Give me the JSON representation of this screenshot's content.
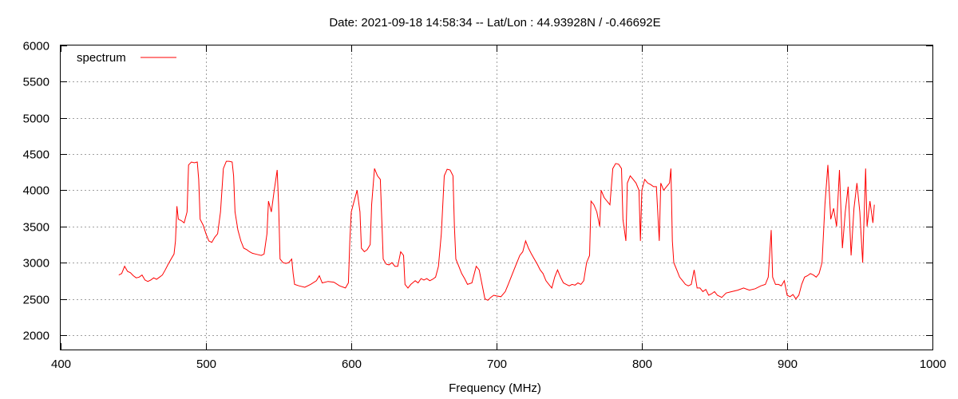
{
  "chart_data": {
    "type": "line",
    "title": "Date: 2021-09-18 14:58:34  --  Lat/Lon : 44.93928N / -0.46692E",
    "xlabel": "Frequency (MHz)",
    "ylabel": "",
    "xlim": [
      400,
      1000
    ],
    "ylim": [
      1800,
      6000
    ],
    "xticks": [
      400,
      500,
      600,
      700,
      800,
      900,
      1000
    ],
    "yticks": [
      2000,
      2500,
      3000,
      3500,
      4000,
      4500,
      5000,
      5500,
      6000
    ],
    "grid": true,
    "legend_position": "top-left",
    "colors": {
      "series": "#ff0000"
    },
    "series": [
      {
        "name": "spectrum",
        "points": [
          [
            440,
            2830
          ],
          [
            442,
            2850
          ],
          [
            444,
            2950
          ],
          [
            446,
            2880
          ],
          [
            448,
            2860
          ],
          [
            450,
            2820
          ],
          [
            452,
            2790
          ],
          [
            454,
            2800
          ],
          [
            456,
            2830
          ],
          [
            458,
            2760
          ],
          [
            460,
            2740
          ],
          [
            462,
            2760
          ],
          [
            464,
            2790
          ],
          [
            466,
            2770
          ],
          [
            468,
            2800
          ],
          [
            470,
            2830
          ],
          [
            472,
            2900
          ],
          [
            474,
            2980
          ],
          [
            476,
            3050
          ],
          [
            478,
            3120
          ],
          [
            479,
            3300
          ],
          [
            480,
            3780
          ],
          [
            481,
            3600
          ],
          [
            483,
            3580
          ],
          [
            485,
            3550
          ],
          [
            487,
            3700
          ],
          [
            488,
            4350
          ],
          [
            490,
            4390
          ],
          [
            492,
            4380
          ],
          [
            494,
            4390
          ],
          [
            495,
            4150
          ],
          [
            496,
            3600
          ],
          [
            498,
            3520
          ],
          [
            500,
            3400
          ],
          [
            502,
            3300
          ],
          [
            504,
            3280
          ],
          [
            506,
            3350
          ],
          [
            508,
            3400
          ],
          [
            510,
            3700
          ],
          [
            512,
            4300
          ],
          [
            514,
            4400
          ],
          [
            516,
            4400
          ],
          [
            518,
            4390
          ],
          [
            519,
            4200
          ],
          [
            520,
            3700
          ],
          [
            522,
            3450
          ],
          [
            524,
            3300
          ],
          [
            526,
            3200
          ],
          [
            528,
            3180
          ],
          [
            530,
            3150
          ],
          [
            532,
            3130
          ],
          [
            534,
            3120
          ],
          [
            536,
            3110
          ],
          [
            538,
            3100
          ],
          [
            540,
            3120
          ],
          [
            542,
            3400
          ],
          [
            543,
            3850
          ],
          [
            545,
            3700
          ],
          [
            547,
            4000
          ],
          [
            549,
            4280
          ],
          [
            550,
            3800
          ],
          [
            551,
            3050
          ],
          [
            553,
            3000
          ],
          [
            555,
            2990
          ],
          [
            557,
            3000
          ],
          [
            559,
            3050
          ],
          [
            560,
            2850
          ],
          [
            561,
            2700
          ],
          [
            564,
            2680
          ],
          [
            568,
            2660
          ],
          [
            572,
            2700
          ],
          [
            576,
            2750
          ],
          [
            578,
            2820
          ],
          [
            580,
            2720
          ],
          [
            584,
            2740
          ],
          [
            588,
            2730
          ],
          [
            592,
            2680
          ],
          [
            596,
            2650
          ],
          [
            598,
            2720
          ],
          [
            599,
            3300
          ],
          [
            600,
            3700
          ],
          [
            602,
            3850
          ],
          [
            604,
            4000
          ],
          [
            606,
            3700
          ],
          [
            607,
            3200
          ],
          [
            609,
            3150
          ],
          [
            611,
            3180
          ],
          [
            613,
            3250
          ],
          [
            614,
            3800
          ],
          [
            616,
            4300
          ],
          [
            618,
            4200
          ],
          [
            620,
            4150
          ],
          [
            621,
            3600
          ],
          [
            622,
            3050
          ],
          [
            624,
            2980
          ],
          [
            626,
            2970
          ],
          [
            628,
            3000
          ],
          [
            630,
            2950
          ],
          [
            632,
            2950
          ],
          [
            634,
            3150
          ],
          [
            636,
            3100
          ],
          [
            637,
            2700
          ],
          [
            639,
            2650
          ],
          [
            641,
            2700
          ],
          [
            644,
            2750
          ],
          [
            646,
            2720
          ],
          [
            648,
            2780
          ],
          [
            650,
            2760
          ],
          [
            652,
            2780
          ],
          [
            654,
            2750
          ],
          [
            656,
            2770
          ],
          [
            658,
            2800
          ],
          [
            660,
            2950
          ],
          [
            662,
            3400
          ],
          [
            664,
            4200
          ],
          [
            666,
            4290
          ],
          [
            668,
            4280
          ],
          [
            670,
            4200
          ],
          [
            671,
            3500
          ],
          [
            672,
            3050
          ],
          [
            674,
            2950
          ],
          [
            676,
            2850
          ],
          [
            678,
            2780
          ],
          [
            680,
            2700
          ],
          [
            683,
            2720
          ],
          [
            686,
            2950
          ],
          [
            688,
            2900
          ],
          [
            690,
            2700
          ],
          [
            692,
            2500
          ],
          [
            694,
            2480
          ],
          [
            696,
            2520
          ],
          [
            698,
            2550
          ],
          [
            700,
            2540
          ],
          [
            703,
            2530
          ],
          [
            706,
            2600
          ],
          [
            708,
            2700
          ],
          [
            710,
            2800
          ],
          [
            712,
            2900
          ],
          [
            714,
            3000
          ],
          [
            716,
            3100
          ],
          [
            718,
            3150
          ],
          [
            720,
            3300
          ],
          [
            722,
            3200
          ],
          [
            724,
            3120
          ],
          [
            726,
            3050
          ],
          [
            728,
            2980
          ],
          [
            730,
            2900
          ],
          [
            732,
            2850
          ],
          [
            734,
            2750
          ],
          [
            736,
            2700
          ],
          [
            738,
            2650
          ],
          [
            740,
            2800
          ],
          [
            742,
            2900
          ],
          [
            744,
            2800
          ],
          [
            746,
            2720
          ],
          [
            748,
            2700
          ],
          [
            750,
            2680
          ],
          [
            752,
            2700
          ],
          [
            754,
            2690
          ],
          [
            756,
            2720
          ],
          [
            758,
            2700
          ],
          [
            760,
            2750
          ],
          [
            762,
            3000
          ],
          [
            764,
            3100
          ],
          [
            765,
            3850
          ],
          [
            767,
            3800
          ],
          [
            769,
            3700
          ],
          [
            771,
            3500
          ],
          [
            772,
            4000
          ],
          [
            774,
            3900
          ],
          [
            776,
            3850
          ],
          [
            778,
            3800
          ],
          [
            780,
            4300
          ],
          [
            782,
            4370
          ],
          [
            784,
            4360
          ],
          [
            786,
            4300
          ],
          [
            787,
            3600
          ],
          [
            789,
            3300
          ],
          [
            790,
            4100
          ],
          [
            792,
            4200
          ],
          [
            794,
            4150
          ],
          [
            796,
            4100
          ],
          [
            798,
            4000
          ],
          [
            799,
            3300
          ],
          [
            800,
            4000
          ],
          [
            802,
            4150
          ],
          [
            804,
            4100
          ],
          [
            806,
            4080
          ],
          [
            808,
            4050
          ],
          [
            810,
            4050
          ],
          [
            812,
            3300
          ],
          [
            813,
            4100
          ],
          [
            815,
            4000
          ],
          [
            817,
            4050
          ],
          [
            819,
            4100
          ],
          [
            820,
            4300
          ],
          [
            821,
            3300
          ],
          [
            822,
            3000
          ],
          [
            824,
            2900
          ],
          [
            826,
            2800
          ],
          [
            828,
            2750
          ],
          [
            830,
            2700
          ],
          [
            832,
            2680
          ],
          [
            834,
            2700
          ],
          [
            836,
            2900
          ],
          [
            838,
            2650
          ],
          [
            840,
            2650
          ],
          [
            842,
            2600
          ],
          [
            844,
            2630
          ],
          [
            846,
            2550
          ],
          [
            848,
            2570
          ],
          [
            850,
            2600
          ],
          [
            852,
            2550
          ],
          [
            855,
            2520
          ],
          [
            858,
            2580
          ],
          [
            862,
            2600
          ],
          [
            866,
            2620
          ],
          [
            870,
            2650
          ],
          [
            874,
            2620
          ],
          [
            878,
            2640
          ],
          [
            882,
            2680
          ],
          [
            885,
            2700
          ],
          [
            887,
            2800
          ],
          [
            889,
            3450
          ],
          [
            890,
            2800
          ],
          [
            892,
            2700
          ],
          [
            894,
            2700
          ],
          [
            896,
            2680
          ],
          [
            898,
            2750
          ],
          [
            900,
            2550
          ],
          [
            902,
            2530
          ],
          [
            904,
            2560
          ],
          [
            906,
            2500
          ],
          [
            908,
            2550
          ],
          [
            910,
            2700
          ],
          [
            912,
            2800
          ],
          [
            914,
            2820
          ],
          [
            916,
            2850
          ],
          [
            918,
            2830
          ],
          [
            920,
            2800
          ],
          [
            922,
            2850
          ],
          [
            924,
            3000
          ],
          [
            926,
            3800
          ],
          [
            928,
            4350
          ],
          [
            930,
            3600
          ],
          [
            932,
            3750
          ],
          [
            934,
            3500
          ],
          [
            936,
            4280
          ],
          [
            938,
            3200
          ],
          [
            940,
            3700
          ],
          [
            942,
            4050
          ],
          [
            944,
            3100
          ],
          [
            946,
            3750
          ],
          [
            948,
            4100
          ],
          [
            950,
            3700
          ],
          [
            952,
            3000
          ],
          [
            954,
            4300
          ],
          [
            955,
            3500
          ],
          [
            957,
            3850
          ],
          [
            959,
            3550
          ],
          [
            960,
            3800
          ]
        ]
      }
    ]
  }
}
